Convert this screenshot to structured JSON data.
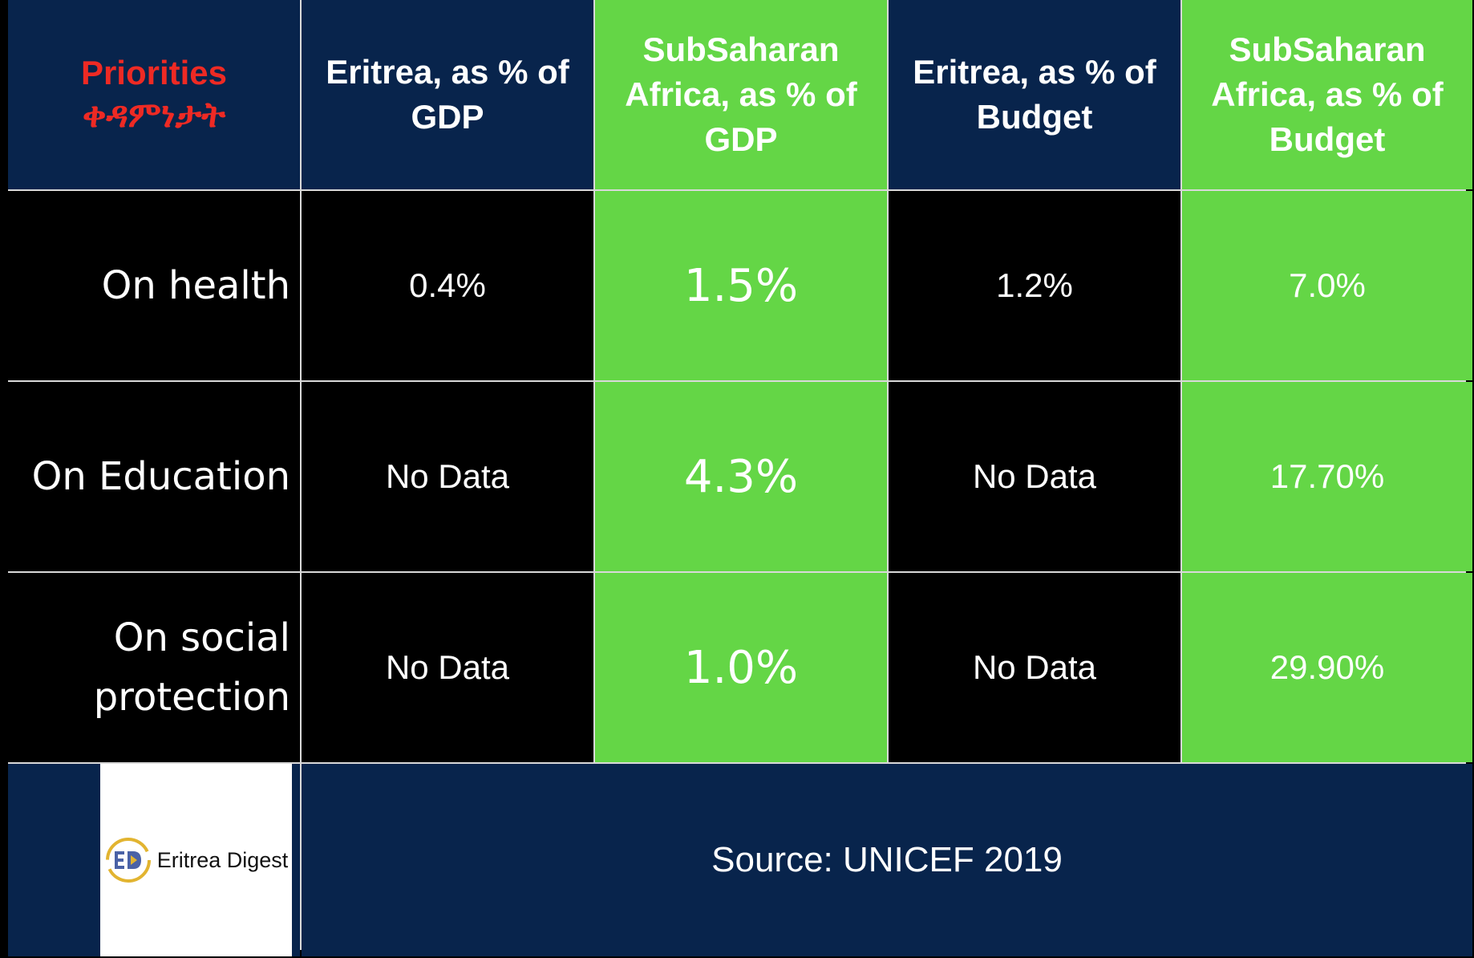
{
  "chart_data": {
    "type": "table",
    "header": {
      "priorities_en": "Priorities",
      "priorities_ti": "ቀዳምነታት",
      "columns": [
        "Eritrea, as % of GDP",
        "SubSaharan Africa, as % of GDP",
        "Eritrea, as % of Budget",
        "SubSaharan Africa, as % of Budget"
      ]
    },
    "rows": [
      {
        "label": "On health",
        "values": [
          "0.4%",
          "1.5%",
          "1.2%",
          "7.0%"
        ]
      },
      {
        "label": "On Education",
        "values": [
          "No Data",
          "4.3%",
          "No Data",
          "17.70%"
        ]
      },
      {
        "label": "On social protection",
        "values": [
          "No Data",
          "1.0%",
          "No Data",
          "29.90%"
        ]
      }
    ],
    "numeric": {
      "eritrea_gdp": [
        0.4,
        null,
        null
      ],
      "ssa_gdp": [
        1.5,
        4.3,
        1.0
      ],
      "eritrea_budget": [
        1.2,
        null,
        null
      ],
      "ssa_budget": [
        7.0,
        17.7,
        29.9
      ]
    }
  },
  "logo": {
    "text": "Eritrea Digest",
    "icon": "eritrea-digest-logo-icon"
  },
  "source": "Source: UNICEF 2019",
  "colors": {
    "navy": "#08244c",
    "green": "#64d646",
    "black": "#000000",
    "priorities_red": "#ee2a24",
    "text": "#ffffff"
  }
}
